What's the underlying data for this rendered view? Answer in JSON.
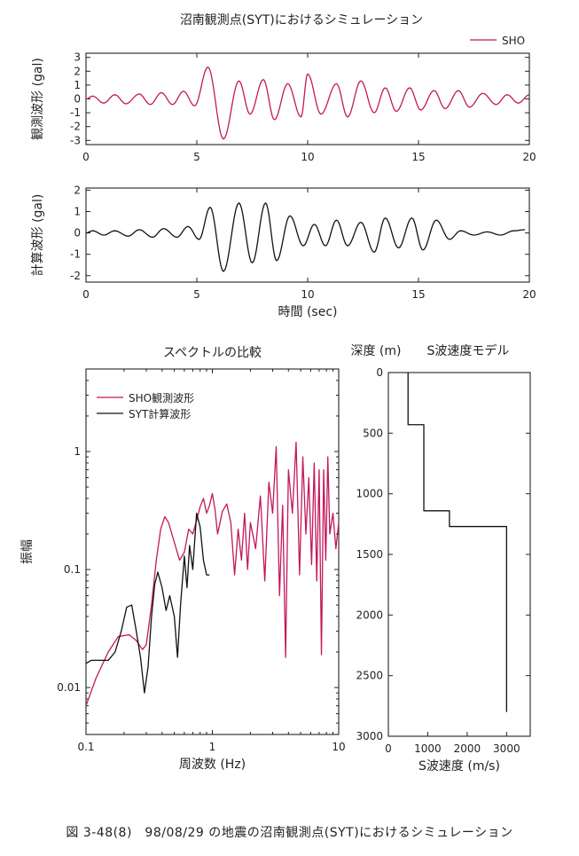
{
  "figure": {
    "caption": "図 3-48(8)　98/08/29 の地震の沼南観測点(SYT)におけるシミュレーション",
    "title": "沼南観測点(SYT)におけるシミュレーション"
  },
  "chart_data": [
    {
      "type": "line",
      "id": "observed",
      "ylabel": "観測波形 (gal)",
      "xlabel": "",
      "xlim": [
        0,
        20
      ],
      "ylim": [
        -3.3,
        3.3
      ],
      "xticks": [
        0,
        5,
        10,
        15,
        20
      ],
      "yticks": [
        -3,
        -2,
        -1,
        0,
        1,
        2,
        3
      ],
      "legend": "top-right",
      "series": [
        {
          "name": "SHO",
          "color": "#c2185b",
          "peaks": [
            [
              0.3,
              0.2
            ],
            [
              0.8,
              -0.3
            ],
            [
              1.3,
              0.3
            ],
            [
              1.8,
              -0.35
            ],
            [
              2.4,
              0.35
            ],
            [
              2.9,
              -0.4
            ],
            [
              3.4,
              0.45
            ],
            [
              3.9,
              -0.4
            ],
            [
              4.4,
              0.55
            ],
            [
              4.9,
              -0.5
            ],
            [
              5.5,
              2.3
            ],
            [
              6.2,
              -2.9
            ],
            [
              6.9,
              1.3
            ],
            [
              7.4,
              -1.1
            ],
            [
              8.0,
              1.4
            ],
            [
              8.5,
              -1.5
            ],
            [
              9.1,
              1.1
            ],
            [
              9.7,
              -1.3
            ],
            [
              10.0,
              1.8
            ],
            [
              10.6,
              -1.1
            ],
            [
              11.3,
              1.1
            ],
            [
              11.8,
              -1.3
            ],
            [
              12.4,
              1.3
            ],
            [
              13.0,
              -1.0
            ],
            [
              13.5,
              0.8
            ],
            [
              14.0,
              -0.9
            ],
            [
              14.6,
              0.8
            ],
            [
              15.1,
              -0.8
            ],
            [
              15.7,
              0.6
            ],
            [
              16.2,
              -0.7
            ],
            [
              16.8,
              0.6
            ],
            [
              17.3,
              -0.6
            ],
            [
              17.9,
              0.4
            ],
            [
              18.5,
              -0.4
            ],
            [
              19.0,
              0.3
            ],
            [
              19.5,
              -0.3
            ],
            [
              20.0,
              0.3
            ]
          ]
        }
      ]
    },
    {
      "type": "line",
      "id": "computed",
      "ylabel": "計算波形 (gal)",
      "xlabel": "時間 (sec)",
      "xlim": [
        0,
        20
      ],
      "ylim": [
        -2.3,
        2.1
      ],
      "xticks": [
        0,
        5,
        10,
        15,
        20
      ],
      "yticks": [
        -2,
        -1,
        0,
        1,
        2
      ],
      "series": [
        {
          "name": "SYT",
          "color": "#111111",
          "peaks": [
            [
              0.3,
              0.1
            ],
            [
              0.8,
              -0.1
            ],
            [
              1.3,
              0.1
            ],
            [
              1.9,
              -0.15
            ],
            [
              2.4,
              0.15
            ],
            [
              3.0,
              -0.2
            ],
            [
              3.5,
              0.2
            ],
            [
              4.1,
              -0.2
            ],
            [
              4.6,
              0.3
            ],
            [
              5.1,
              -0.3
            ],
            [
              5.6,
              1.2
            ],
            [
              6.2,
              -1.8
            ],
            [
              6.9,
              1.4
            ],
            [
              7.5,
              -1.4
            ],
            [
              8.1,
              1.4
            ],
            [
              8.6,
              -1.3
            ],
            [
              9.2,
              0.8
            ],
            [
              9.8,
              -0.6
            ],
            [
              10.3,
              0.4
            ],
            [
              10.8,
              -0.6
            ],
            [
              11.3,
              0.6
            ],
            [
              11.8,
              -0.6
            ],
            [
              12.4,
              0.5
            ],
            [
              13.0,
              -0.9
            ],
            [
              13.5,
              0.7
            ],
            [
              14.1,
              -0.7
            ],
            [
              14.7,
              0.7
            ],
            [
              15.2,
              -0.8
            ],
            [
              15.8,
              0.6
            ],
            [
              16.4,
              -0.3
            ],
            [
              16.9,
              0.1
            ],
            [
              17.5,
              -0.1
            ],
            [
              18.1,
              0.05
            ],
            [
              18.7,
              -0.1
            ],
            [
              19.3,
              0.1
            ],
            [
              19.8,
              0.15
            ]
          ]
        }
      ]
    },
    {
      "type": "line",
      "id": "spectrum",
      "title": "スペクトルの比較",
      "xlabel": "周波数 (Hz)",
      "ylabel": "振幅",
      "xscale": "log",
      "yscale": "log",
      "xlim": [
        0.1,
        10
      ],
      "ylim": [
        0.004,
        5
      ],
      "xticks": [
        0.1,
        1,
        10
      ],
      "yticks": [
        0.01,
        0.1,
        1
      ],
      "legend": "top-left",
      "series": [
        {
          "name": "SHO観測波形",
          "color": "#c2185b",
          "points": [
            [
              0.1,
              0.007
            ],
            [
              0.12,
              0.012
            ],
            [
              0.15,
              0.02
            ],
            [
              0.18,
              0.027
            ],
            [
              0.22,
              0.028
            ],
            [
              0.25,
              0.025
            ],
            [
              0.28,
              0.021
            ],
            [
              0.3,
              0.023
            ],
            [
              0.33,
              0.05
            ],
            [
              0.36,
              0.12
            ],
            [
              0.39,
              0.22
            ],
            [
              0.42,
              0.28
            ],
            [
              0.45,
              0.25
            ],
            [
              0.5,
              0.17
            ],
            [
              0.55,
              0.12
            ],
            [
              0.6,
              0.14
            ],
            [
              0.65,
              0.22
            ],
            [
              0.7,
              0.2
            ],
            [
              0.75,
              0.26
            ],
            [
              0.8,
              0.34
            ],
            [
              0.85,
              0.4
            ],
            [
              0.9,
              0.3
            ],
            [
              0.95,
              0.35
            ],
            [
              1.0,
              0.44
            ],
            [
              1.05,
              0.32
            ],
            [
              1.1,
              0.2
            ],
            [
              1.2,
              0.31
            ],
            [
              1.3,
              0.36
            ],
            [
              1.4,
              0.25
            ],
            [
              1.5,
              0.09
            ],
            [
              1.6,
              0.22
            ],
            [
              1.7,
              0.12
            ],
            [
              1.8,
              0.3
            ],
            [
              1.9,
              0.1
            ],
            [
              2.0,
              0.25
            ],
            [
              2.2,
              0.15
            ],
            [
              2.4,
              0.42
            ],
            [
              2.6,
              0.08
            ],
            [
              2.8,
              0.55
            ],
            [
              3.0,
              0.3
            ],
            [
              3.2,
              1.1
            ],
            [
              3.4,
              0.06
            ],
            [
              3.6,
              0.35
            ],
            [
              3.8,
              0.018
            ],
            [
              4.0,
              0.7
            ],
            [
              4.3,
              0.3
            ],
            [
              4.6,
              1.2
            ],
            [
              4.9,
              0.09
            ],
            [
              5.2,
              0.9
            ],
            [
              5.5,
              0.2
            ],
            [
              5.8,
              0.6
            ],
            [
              6.1,
              0.11
            ],
            [
              6.4,
              0.8
            ],
            [
              6.7,
              0.08
            ],
            [
              7.0,
              0.7
            ],
            [
              7.3,
              0.019
            ],
            [
              7.6,
              0.7
            ],
            [
              7.9,
              0.12
            ],
            [
              8.2,
              0.9
            ],
            [
              8.5,
              0.2
            ],
            [
              9.0,
              0.3
            ],
            [
              9.5,
              0.15
            ],
            [
              10.0,
              0.25
            ]
          ]
        },
        {
          "name": "SYT計算波形",
          "color": "#111111",
          "points": [
            [
              0.1,
              0.016
            ],
            [
              0.11,
              0.017
            ],
            [
              0.13,
              0.017
            ],
            [
              0.15,
              0.017
            ],
            [
              0.17,
              0.02
            ],
            [
              0.19,
              0.03
            ],
            [
              0.21,
              0.048
            ],
            [
              0.23,
              0.05
            ],
            [
              0.25,
              0.03
            ],
            [
              0.27,
              0.018
            ],
            [
              0.29,
              0.009
            ],
            [
              0.31,
              0.015
            ],
            [
              0.33,
              0.04
            ],
            [
              0.35,
              0.075
            ],
            [
              0.37,
              0.095
            ],
            [
              0.4,
              0.07
            ],
            [
              0.43,
              0.045
            ],
            [
              0.46,
              0.06
            ],
            [
              0.5,
              0.04
            ],
            [
              0.53,
              0.018
            ],
            [
              0.56,
              0.05
            ],
            [
              0.6,
              0.13
            ],
            [
              0.63,
              0.07
            ],
            [
              0.66,
              0.16
            ],
            [
              0.7,
              0.1
            ],
            [
              0.75,
              0.3
            ],
            [
              0.8,
              0.23
            ],
            [
              0.85,
              0.12
            ],
            [
              0.9,
              0.09
            ],
            [
              0.95,
              0.09
            ]
          ]
        }
      ]
    },
    {
      "type": "line",
      "id": "velocity_model",
      "title": "S波速度モデル",
      "ylabel": "深度 (m)",
      "xlabel": "S波速度 (m/s)",
      "xlim": [
        0,
        3600
      ],
      "ylim": [
        3000,
        0
      ],
      "xticks": [
        0,
        1000,
        2000,
        3000
      ],
      "yticks": [
        0,
        500,
        1000,
        1500,
        2000,
        2500,
        3000
      ],
      "series": [
        {
          "points": [
            [
              500,
              0
            ],
            [
              500,
              430
            ],
            [
              900,
              430
            ],
            [
              900,
              1140
            ],
            [
              1550,
              1140
            ],
            [
              1550,
              1270
            ],
            [
              3000,
              1270
            ],
            [
              3000,
              2800
            ]
          ]
        }
      ]
    }
  ]
}
